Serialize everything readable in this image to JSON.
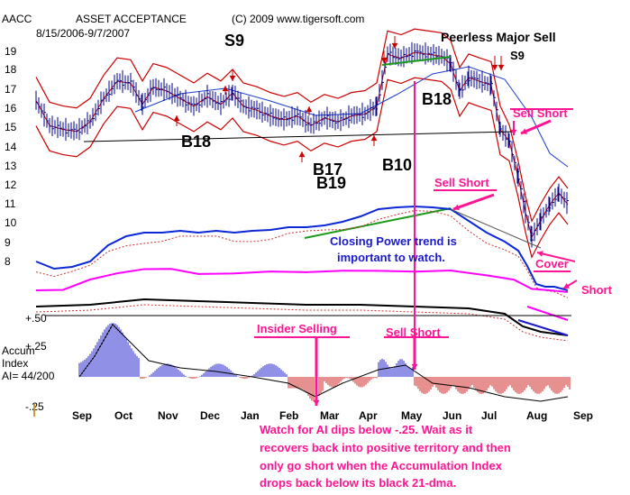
{
  "header": {
    "ticker": "AACC",
    "company": "ASSET ACCEPTANCE",
    "copyright": "(C) 2009 www.tigersoft.com",
    "date_range": "8/15/2006-9/7/2007"
  },
  "price_axis": {
    "labels": [
      "19",
      "18",
      "17",
      "16",
      "15",
      "14",
      "13",
      "12",
      "11",
      "10",
      "9",
      "8"
    ]
  },
  "accum_axis": {
    "labels": [
      "+.50",
      "+.25",
      "-.25"
    ],
    "title_lines": [
      "Accum",
      "Index",
      "AI= 44/200"
    ]
  },
  "months": [
    "Sep",
    "Oct",
    "Nov",
    "Dec",
    "Jan",
    "Feb",
    "Mar",
    "Apr",
    "May",
    "Jun",
    "Jul",
    "Aug",
    "Sep"
  ],
  "signals": {
    "s9_left": "S9",
    "s9_right": "S9",
    "peerless": "Peerless Major Sell",
    "b18_left": "B18",
    "b18_mid": "B18",
    "b17": "B17",
    "b19": "B19",
    "b10": "B10"
  },
  "annotations": {
    "sell_short_upper": "Sell Short",
    "sell_short_mid": "Sell Short",
    "closing_power_1": "Closing Power trend is",
    "closing_power_2": "important to watch.",
    "cover": "Cover",
    "short": "Short",
    "insider_selling": "Insider Selling",
    "sell_short_lower": "Sell Short",
    "footnote": [
      "Watch for AI dips below -.25.  Wait as it",
      "recovers back into positive territory and then",
      "only go short when the Accumulation Index",
      "drops back below its black 21-dma."
    ]
  },
  "colors": {
    "price_bar": "#00008b",
    "ma": "#cc0000",
    "band": "#cc0000",
    "blue_ma": "#1a3ccf",
    "closing_power": "#0a28d8",
    "magenta": "#ff00ff",
    "annotation": "#ff1493",
    "accum_pos": "#2222cc",
    "accum_neg": "#cc2222",
    "trend_green": "#1a9a1a"
  },
  "chart_data": {
    "type": "line",
    "x": [
      "Sep",
      "Oct",
      "Nov",
      "Dec",
      "Jan",
      "Feb",
      "Mar",
      "Apr",
      "May",
      "Jun",
      "Jul",
      "Aug",
      "Sep"
    ],
    "series": [
      {
        "name": "AACC",
        "values": [
          15.2,
          17.4,
          17.1,
          16.4,
          16.1,
          15.5,
          15.1,
          15.9,
          18.9,
          17.0,
          17.3,
          9.3,
          11.0
        ]
      }
    ],
    "ylim": [
      8,
      19
    ],
    "accum_ylim": [
      -0.25,
      0.5
    ]
  }
}
